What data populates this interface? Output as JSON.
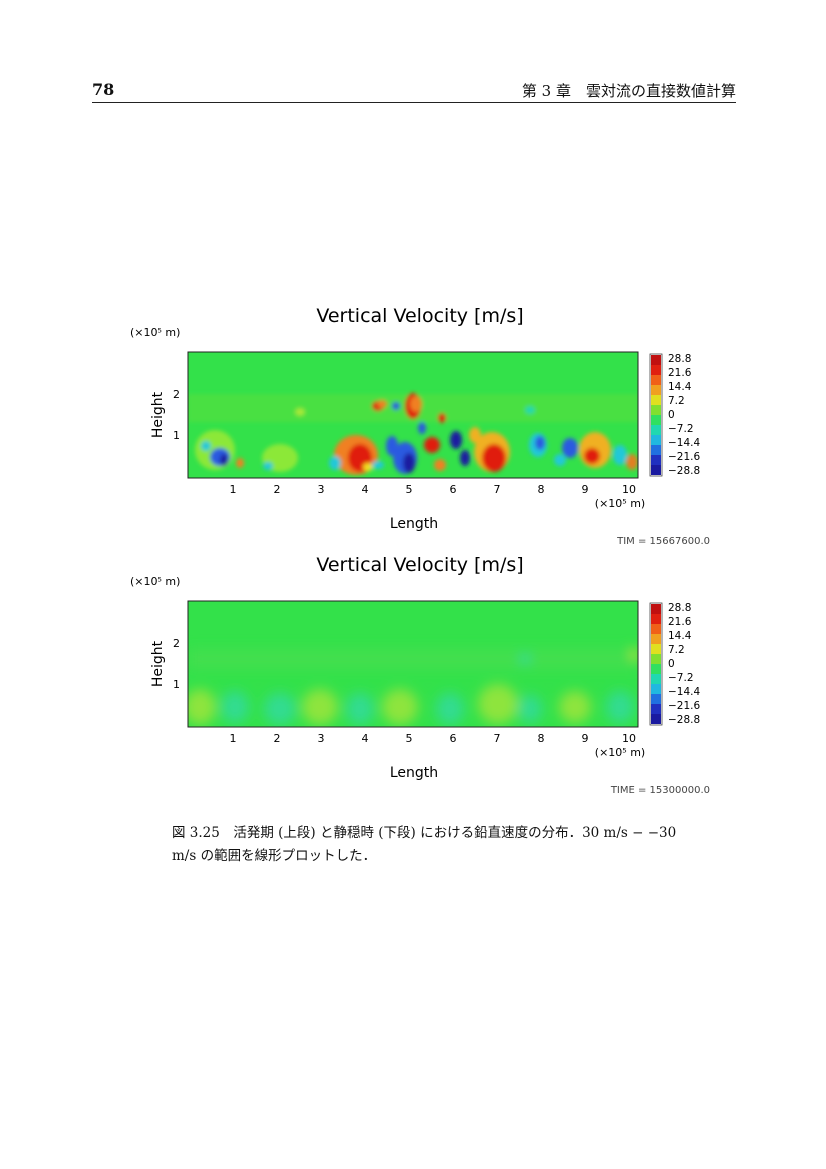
{
  "header": {
    "page_number": "78",
    "chapter_title": "第 3 章　雲対流の直接数値計算"
  },
  "figures": [
    {
      "title": "Vertical Velocity [m/s]",
      "y_unit": "(×10⁵ m)",
      "ylabel": "Height",
      "y_ticks": [
        "1",
        "2"
      ],
      "xlabel": "Length",
      "x_ticks": [
        "1",
        "2",
        "3",
        "4",
        "5",
        "6",
        "7",
        "8",
        "9",
        "10"
      ],
      "x_unit": "(×10⁵ m)",
      "colorbar_labels": [
        "28.8",
        "21.6",
        "14.4",
        "7.2",
        "0",
        "−7.2",
        "−14.4",
        "−21.6",
        "−28.8"
      ],
      "time_label": "TIM    =  15667600.0"
    },
    {
      "title": "Vertical Velocity [m/s]",
      "y_unit": "(×10⁵ m)",
      "ylabel": "Height",
      "y_ticks": [
        "1",
        "2"
      ],
      "xlabel": "Length",
      "x_ticks": [
        "1",
        "2",
        "3",
        "4",
        "5",
        "6",
        "7",
        "8",
        "9",
        "10"
      ],
      "x_unit": "(×10⁵ m)",
      "colorbar_labels": [
        "28.8",
        "21.6",
        "14.4",
        "7.2",
        "0",
        "−7.2",
        "−14.4",
        "−21.6",
        "−28.8"
      ],
      "time_label": "TIME  =  15300000.0"
    }
  ],
  "caption": {
    "line1": "図 3.25　活発期 (上段) と静穏時 (下段) における鉛直速度の分布．30 m/s − −30",
    "line2": "m/s の範囲を線形プロットした．"
  },
  "colors": {
    "field_background": "#33e14a",
    "positive_strong": "#e01a10",
    "positive_mid": "#f08020",
    "positive_weak": "#d8e020",
    "negative_weak": "#20c8d8",
    "negative_mid": "#2a5ae0",
    "negative_strong": "#1a1aa0"
  }
}
